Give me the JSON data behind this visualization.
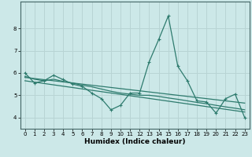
{
  "title": "",
  "xlabel": "Humidex (Indice chaleur)",
  "xlim": [
    -0.5,
    23.5
  ],
  "ylim": [
    3.5,
    9.2
  ],
  "xticks": [
    0,
    1,
    2,
    3,
    4,
    5,
    6,
    7,
    8,
    9,
    10,
    11,
    12,
    13,
    14,
    15,
    16,
    17,
    18,
    19,
    20,
    21,
    22,
    23
  ],
  "yticks": [
    4,
    5,
    6,
    7,
    8
  ],
  "bg_color": "#cce8e8",
  "line_color": "#2e7b6e",
  "grid_color": "#b8d4d4",
  "line1_x": [
    0,
    1,
    2,
    3,
    4,
    5,
    6,
    7,
    8,
    9,
    10,
    11,
    12,
    13,
    14,
    15,
    16,
    17,
    18,
    19,
    20,
    21,
    22,
    23
  ],
  "line1_y": [
    6.0,
    5.55,
    5.65,
    5.9,
    5.7,
    5.5,
    5.4,
    5.1,
    4.85,
    4.35,
    4.55,
    5.1,
    5.1,
    6.5,
    7.5,
    8.55,
    6.3,
    5.65,
    4.75,
    4.7,
    4.2,
    4.85,
    5.05,
    4.0
  ],
  "line2_x": [
    0,
    1,
    2,
    3,
    4,
    5,
    6,
    7,
    8,
    9,
    10,
    11,
    12,
    13,
    14,
    15,
    16,
    17,
    18,
    19,
    20,
    21,
    22,
    23
  ],
  "line2_y": [
    5.85,
    5.72,
    5.65,
    5.72,
    5.62,
    5.55,
    5.45,
    5.38,
    5.28,
    5.18,
    5.1,
    5.05,
    5.0,
    5.0,
    4.95,
    4.88,
    4.82,
    4.75,
    4.68,
    4.62,
    4.55,
    4.48,
    4.42,
    4.35
  ],
  "line3_x": [
    0,
    23
  ],
  "line3_y": [
    5.8,
    4.65
  ],
  "line4_x": [
    0,
    23
  ],
  "line4_y": [
    5.65,
    4.25
  ]
}
